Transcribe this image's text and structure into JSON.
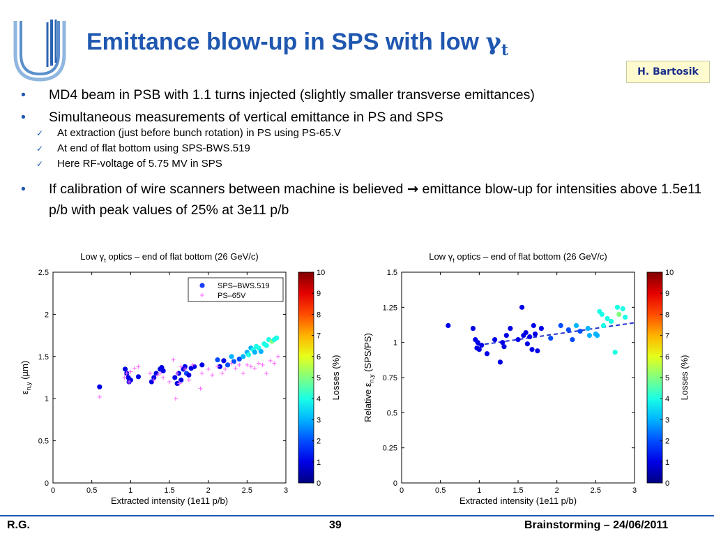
{
  "slide": {
    "title_main": "Emittance blow-up in SPS with low ",
    "title_gamma": "γ",
    "title_sub": "t",
    "author": "H. Bartosik",
    "bullets": [
      "MD4 beam in PSB with 1.1 turns injected (slightly smaller transverse emittances)",
      "Simultaneous measurements of vertical emittance in PS and SPS"
    ],
    "checks": [
      "At extraction (just before bunch rotation) in PS using PS-65.V",
      "At end of flat bottom using SPS-BWS.519",
      "Here RF-voltage of 5.75 MV in SPS"
    ],
    "bullet3_part1": "If calibration of wire scanners between machine is believed ",
    "bullet3_arrow": "→",
    "bullet3_part2": " emittance blow-up for intensities above 1.5e11 p/b with peak values of 25% at 3e11 p/b",
    "footer_left": "R.G.",
    "footer_center": "39",
    "footer_right": "Brainstorming – 24/06/2011"
  },
  "colors": {
    "title": "#1f57b0",
    "ps_marker": "#ff66ff",
    "fit_line": "#2233cc"
  },
  "chart_data": [
    {
      "type": "scatter",
      "title": "Low γt optics – end of flat bottom (26 GeV/c)",
      "title_parts": [
        "Low γ",
        "t",
        " optics – end of flat bottom (26 GeV/c)"
      ],
      "xlabel": "Extracted intensity (1e11 p/b)",
      "ylabel": "ε n,y (µm)",
      "ylabel_parts": [
        "ε",
        "n,y",
        " (µm)"
      ],
      "xlim": [
        0,
        3
      ],
      "ylim": [
        0,
        2.5
      ],
      "xticks": [
        "0",
        "0.5",
        "1",
        "1.5",
        "2",
        "2.5",
        "3"
      ],
      "yticks": [
        "0",
        "0.5",
        "1",
        "1.5",
        "2",
        "2.5"
      ],
      "legend_position": "top-right",
      "colorbar": {
        "label": "Losses (%)",
        "range": [
          0,
          10
        ],
        "ticks": [
          "0",
          "1",
          "2",
          "3",
          "4",
          "5",
          "6",
          "7",
          "8",
          "9",
          "10"
        ]
      },
      "series": [
        {
          "name": "SPS–BWS.519",
          "marker": "dot",
          "x": [
            0.6,
            0.93,
            0.95,
            0.97,
            0.98,
            1.0,
            1.1,
            1.27,
            1.3,
            1.33,
            1.38,
            1.4,
            1.42,
            1.57,
            1.6,
            1.62,
            1.65,
            1.68,
            1.7,
            1.72,
            1.75,
            1.78,
            1.82,
            1.92,
            2.12,
            2.15,
            2.2,
            2.25,
            2.3,
            2.33,
            2.4,
            2.45,
            2.5,
            2.52,
            2.55,
            2.58,
            2.6,
            2.62,
            2.65,
            2.68,
            2.72,
            2.75,
            2.78,
            2.82,
            2.85,
            2.88
          ],
          "y": [
            1.14,
            1.35,
            1.3,
            1.25,
            1.2,
            1.22,
            1.26,
            1.2,
            1.25,
            1.3,
            1.35,
            1.37,
            1.33,
            1.25,
            1.18,
            1.3,
            1.22,
            1.35,
            1.38,
            1.3,
            1.28,
            1.36,
            1.38,
            1.4,
            1.46,
            1.38,
            1.45,
            1.4,
            1.5,
            1.44,
            1.47,
            1.5,
            1.55,
            1.52,
            1.6,
            1.58,
            1.55,
            1.62,
            1.6,
            1.56,
            1.65,
            1.63,
            1.7,
            1.68,
            1.7,
            1.72
          ],
          "losses": [
            1,
            1,
            1,
            1,
            1,
            1,
            1,
            1,
            1,
            1,
            1,
            1,
            1,
            1,
            1,
            1,
            1,
            1,
            1,
            2,
            1,
            1,
            1,
            1,
            2,
            1,
            1,
            2,
            3,
            2,
            2,
            3,
            3,
            4,
            3,
            4,
            3,
            4,
            4,
            3,
            4,
            4,
            4,
            5,
            4,
            4
          ]
        },
        {
          "name": "PS–65V",
          "marker": "plus",
          "x": [
            0.6,
            0.92,
            0.95,
            0.98,
            1.0,
            1.05,
            1.1,
            1.25,
            1.3,
            1.35,
            1.38,
            1.42,
            1.5,
            1.55,
            1.58,
            1.6,
            1.63,
            1.65,
            1.7,
            1.75,
            1.8,
            1.9,
            1.92,
            2.0,
            2.05,
            2.12,
            2.18,
            2.22,
            2.3,
            2.35,
            2.4,
            2.45,
            2.5,
            2.55,
            2.6,
            2.65,
            2.7,
            2.75,
            2.8,
            2.85,
            2.9
          ],
          "y": [
            1.02,
            1.25,
            1.3,
            1.2,
            1.32,
            1.36,
            1.38,
            1.3,
            1.22,
            1.28,
            1.3,
            1.25,
            1.2,
            1.46,
            1.0,
            1.3,
            1.18,
            1.38,
            1.35,
            1.22,
            1.4,
            1.12,
            1.3,
            1.35,
            1.28,
            1.38,
            1.3,
            1.35,
            1.42,
            1.36,
            1.4,
            1.3,
            1.4,
            1.38,
            1.36,
            1.42,
            1.4,
            1.3,
            1.45,
            1.42,
            1.5
          ]
        }
      ]
    },
    {
      "type": "scatter",
      "title": "Low γt optics – end of flat bottom (26 GeV/c)",
      "title_parts": [
        "Low γ",
        "t",
        " optics – end of flat bottom (26 GeV/c)"
      ],
      "xlabel": "Extracted intensity (1e11 p/b)",
      "ylabel": "Relative ε n,y (SPS/PS)",
      "ylabel_parts": [
        "Relative ε",
        "n,y",
        " (SPS/PS)"
      ],
      "xlim": [
        0,
        3
      ],
      "ylim": [
        0,
        1.5
      ],
      "xticks": [
        "0",
        "0.5",
        "1",
        "1.5",
        "2",
        "2.5",
        "3"
      ],
      "yticks": [
        "0",
        "0.25",
        "0.5",
        "0.75",
        "1",
        "1.25",
        "1.5"
      ],
      "colorbar": {
        "label": "Losses (%)",
        "range": [
          0,
          10
        ],
        "ticks": [
          "0",
          "1",
          "2",
          "3",
          "4",
          "5",
          "6",
          "7",
          "8",
          "9",
          "10"
        ]
      },
      "fit_line": {
        "x": [
          0.98,
          3.0
        ],
        "y": [
          0.98,
          1.14
        ],
        "style": "dashed"
      },
      "series": [
        {
          "marker": "dot",
          "x": [
            0.6,
            0.92,
            0.95,
            0.97,
            0.98,
            1.0,
            1.03,
            1.1,
            1.2,
            1.27,
            1.3,
            1.32,
            1.35,
            1.4,
            1.5,
            1.55,
            1.57,
            1.6,
            1.62,
            1.65,
            1.68,
            1.7,
            1.72,
            1.75,
            1.8,
            1.92,
            2.05,
            2.15,
            2.2,
            2.25,
            2.3,
            2.4,
            2.42,
            2.5,
            2.52,
            2.55,
            2.58,
            2.6,
            2.65,
            2.7,
            2.75,
            2.78,
            2.8,
            2.85,
            2.88
          ],
          "y": [
            1.12,
            1.1,
            1.02,
            0.96,
            1.0,
            0.95,
            0.98,
            0.92,
            1.02,
            0.86,
            1.0,
            0.97,
            1.05,
            1.1,
            1.02,
            1.25,
            1.05,
            1.07,
            0.99,
            1.04,
            0.95,
            1.12,
            1.06,
            0.94,
            1.1,
            1.03,
            1.12,
            1.09,
            1.02,
            1.12,
            1.08,
            1.1,
            1.05,
            1.06,
            1.05,
            1.22,
            1.2,
            1.12,
            1.17,
            1.15,
            0.93,
            1.25,
            1.2,
            1.24,
            1.18
          ],
          "losses": [
            1,
            1,
            1,
            1,
            1,
            1,
            1,
            1,
            1,
            1,
            1,
            1,
            1,
            1,
            1,
            1,
            1,
            1,
            1,
            1,
            1,
            1,
            1,
            1,
            1,
            2,
            2,
            2,
            2,
            3,
            2,
            3,
            3,
            3,
            3,
            4,
            4,
            4,
            4,
            4,
            4,
            4,
            5,
            4,
            4
          ]
        }
      ]
    }
  ]
}
